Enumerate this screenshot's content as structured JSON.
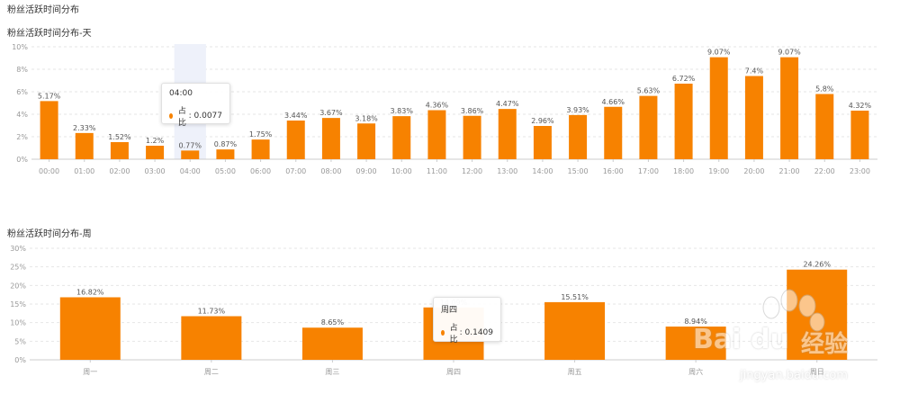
{
  "page_title": "粉丝活跃时间分布",
  "chart_data": [
    {
      "type": "bar",
      "title": "粉丝活跃时间分布-天",
      "categories": [
        "00:00",
        "01:00",
        "02:00",
        "03:00",
        "04:00",
        "05:00",
        "06:00",
        "07:00",
        "08:00",
        "09:00",
        "10:00",
        "11:00",
        "12:00",
        "13:00",
        "14:00",
        "15:00",
        "16:00",
        "17:00",
        "18:00",
        "19:00",
        "20:00",
        "21:00",
        "22:00",
        "23:00"
      ],
      "values": [
        5.17,
        2.33,
        1.52,
        1.2,
        0.77,
        0.87,
        1.75,
        3.44,
        3.67,
        3.18,
        3.83,
        4.36,
        3.86,
        4.47,
        2.96,
        3.93,
        4.66,
        5.63,
        6.72,
        9.07,
        7.4,
        9.07,
        5.8,
        4.32
      ],
      "data_labels": [
        "5.17%",
        "2.33%",
        "1.52%",
        "1.2%",
        "0.77%",
        "0.87%",
        "1.75%",
        "3.44%",
        "3.67%",
        "3.18%",
        "3.83%",
        "4.36%",
        "3.86%",
        "4.47%",
        "2.96%",
        "3.93%",
        "4.66%",
        "5.63%",
        "6.72%",
        "9.07%",
        "7.4%",
        "9.07%",
        "5.8%",
        "4.32%"
      ],
      "yticks": [
        "0%",
        "2%",
        "4%",
        "6%",
        "8%",
        "10%"
      ],
      "ylim": [
        0,
        10
      ],
      "grid": true,
      "color": "#f78200",
      "highlight_index": 4,
      "tooltip": {
        "title": "04:00",
        "series": "占比",
        "value": "0.0077"
      }
    },
    {
      "type": "bar",
      "title": "粉丝活跃时间分布-周",
      "categories": [
        "周一",
        "周二",
        "周三",
        "周四",
        "周五",
        "周六",
        "周日"
      ],
      "values": [
        16.82,
        11.73,
        8.65,
        14.09,
        15.51,
        8.94,
        24.26
      ],
      "data_labels": [
        "16.82%",
        "11.73%",
        "8.65%",
        "14.09%",
        "15.51%",
        "8.94%",
        "24.26%"
      ],
      "yticks": [
        "0%",
        "5%",
        "10%",
        "15%",
        "20%",
        "25%",
        "30%"
      ],
      "ylim": [
        0,
        30
      ],
      "grid": true,
      "color": "#f78200",
      "highlight_index": 3,
      "tooltip": {
        "title": "周四",
        "series": "占比",
        "value": "0.1409"
      }
    }
  ],
  "watermark": {
    "brand": "Bai",
    "brand2": "du",
    "suffix": "经验",
    "url": "jingyan.baidu.com"
  }
}
